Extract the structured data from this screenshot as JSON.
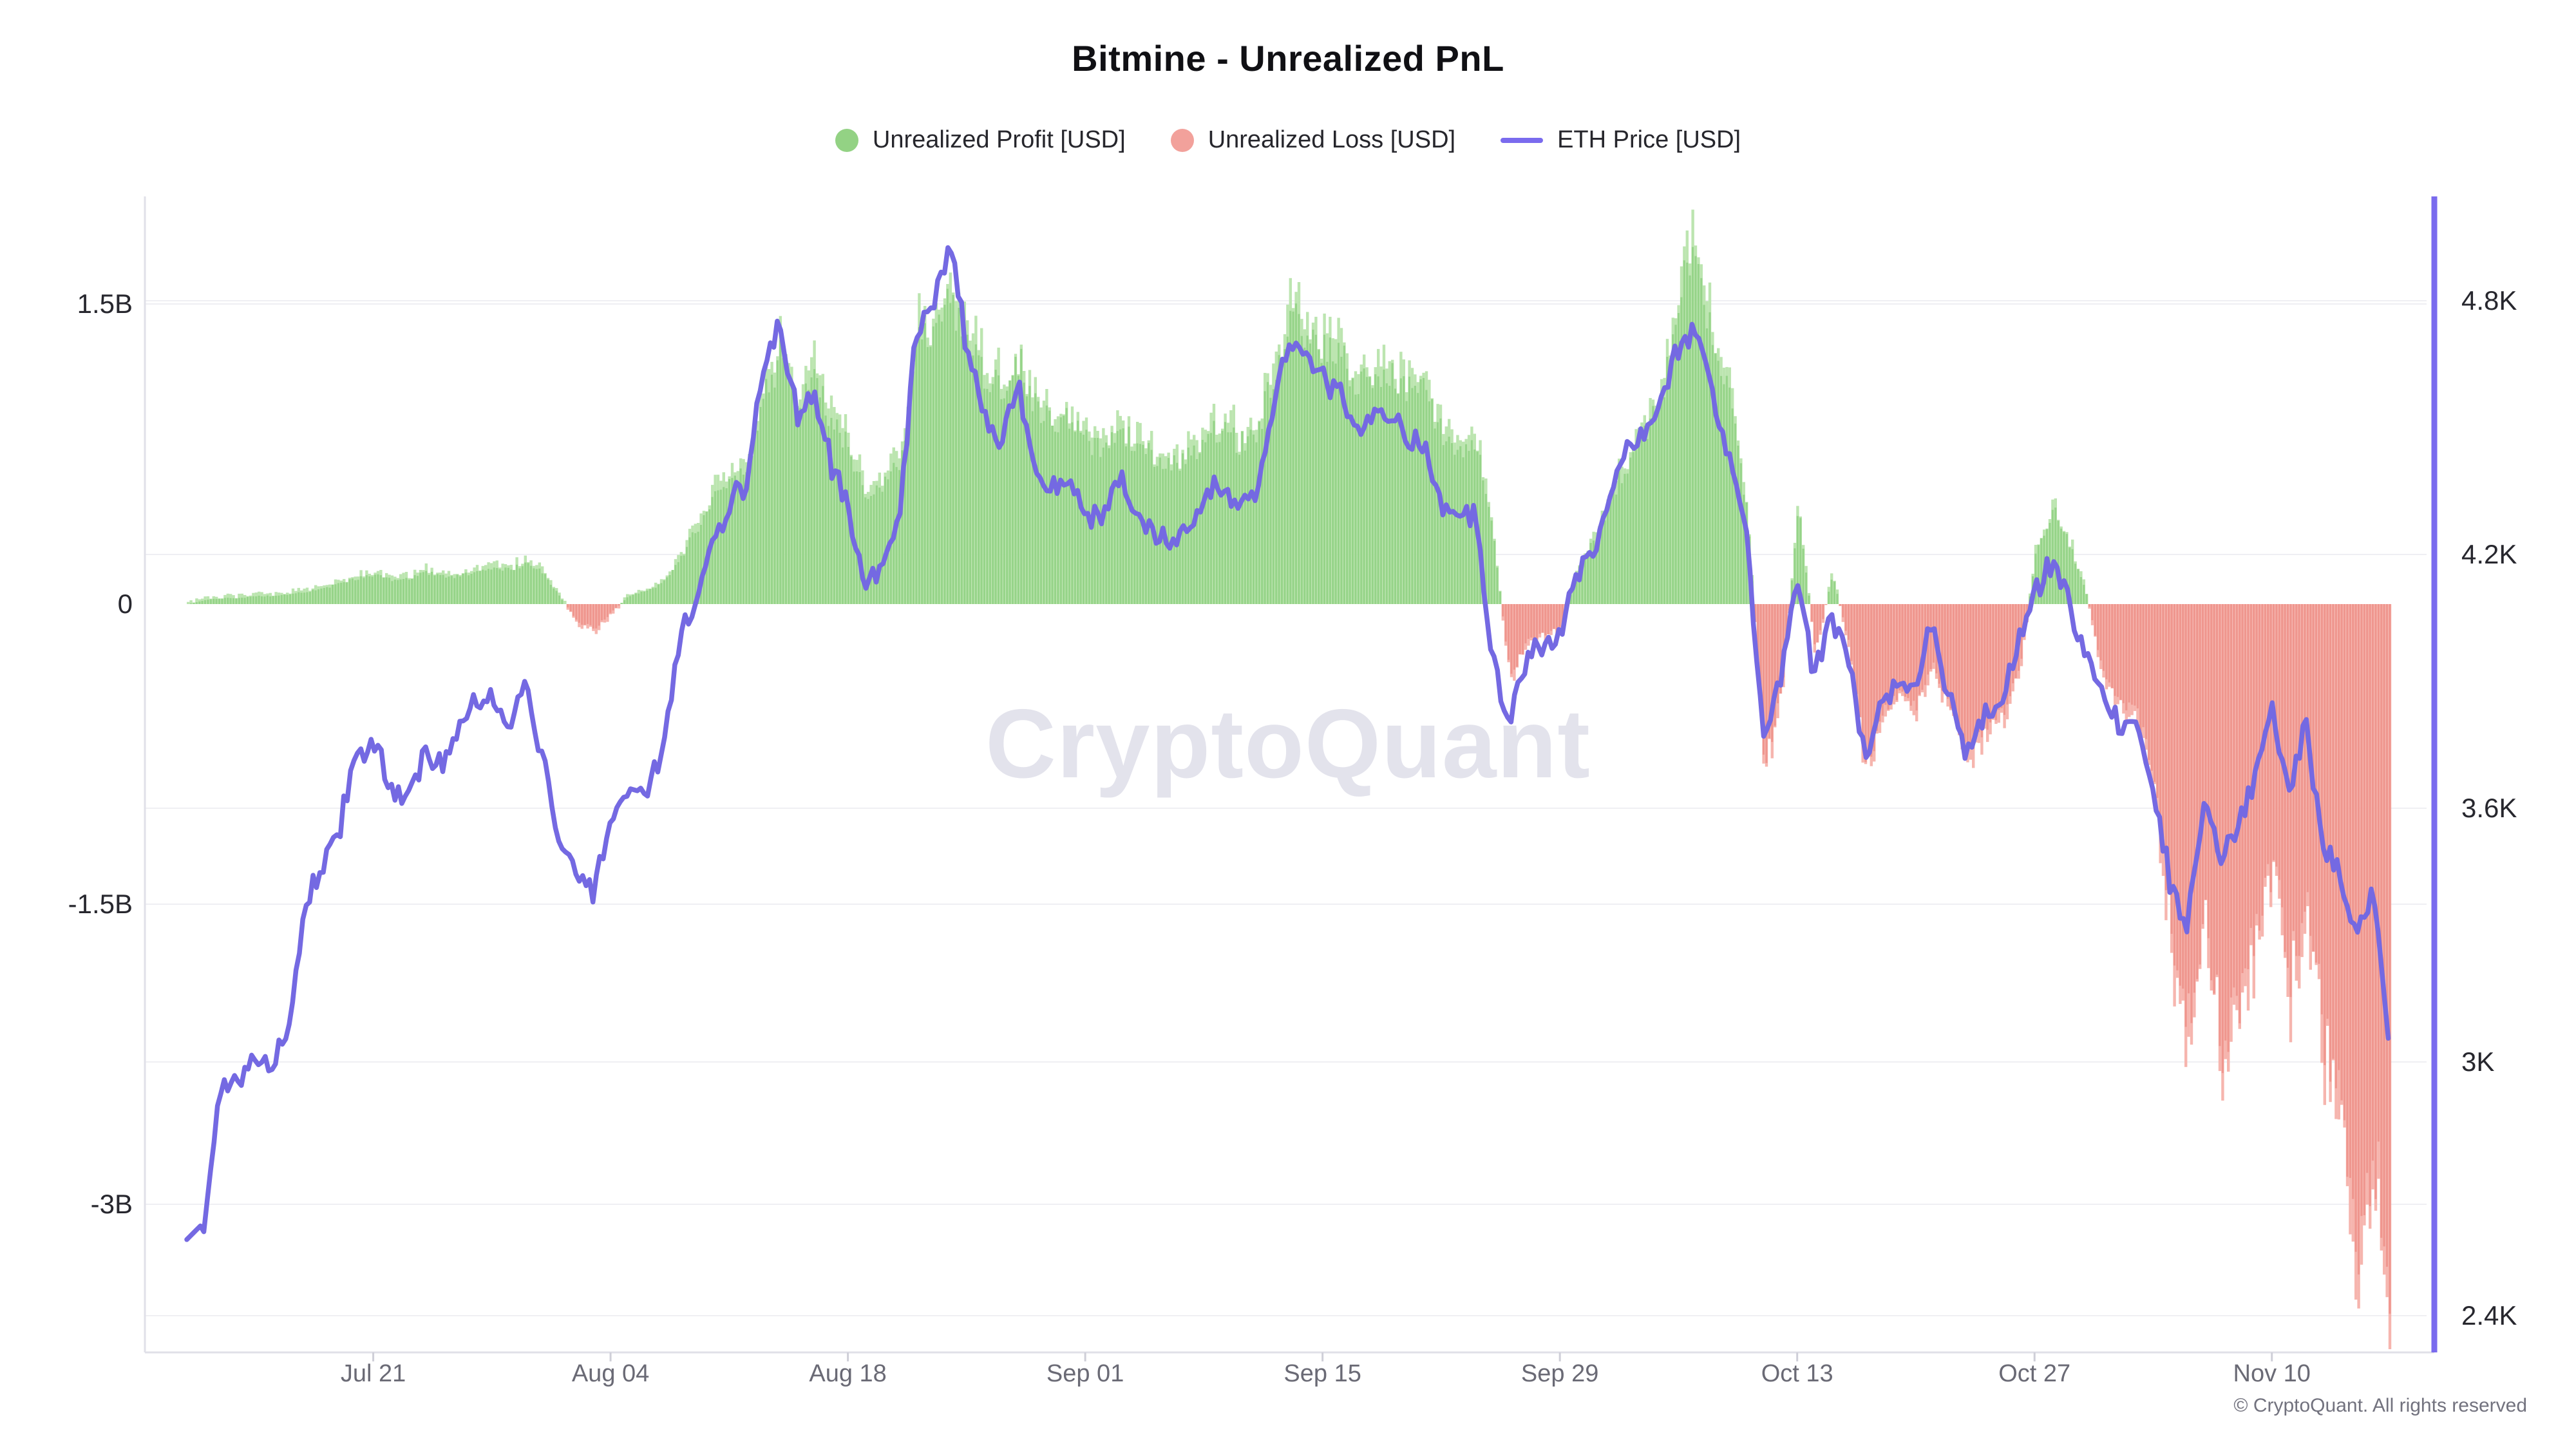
{
  "title": "Bitmine - Unrealized PnL",
  "watermark": "CryptoQuant",
  "copyright": "© CryptoQuant. All rights reserved",
  "legend": [
    {
      "label": "Unrealized Profit [USD]",
      "swatch": "circle",
      "color": "#93d284"
    },
    {
      "label": "Unrealized Loss [USD]",
      "swatch": "circle",
      "color": "#f2a19b"
    },
    {
      "label": "ETH Price [USD]",
      "swatch": "line",
      "color": "#7a6bee"
    }
  ],
  "colors": {
    "profit_bar": "#96d489",
    "profit_bar_light": "#bce5b0",
    "loss_bar": "#ef968e",
    "loss_bar_light": "#f6b5ae",
    "eth_line": "#7469e2",
    "right_axis_line": "#7a6bee",
    "gridline": "#efeff3",
    "axis_line": "#e0e0e8",
    "tick_mark": "#cfcfd8"
  },
  "chart_data": {
    "type": "combo",
    "title": "Bitmine - Unrealized PnL",
    "subtitle": "",
    "grid": "horizontal only",
    "legend_position": "top center",
    "series": [
      {
        "name": "Unrealized Profit [USD]",
        "type": "bar",
        "axis": "left",
        "color": "#96d489",
        "source": "positive part of unrealized_pnl_billion_usd"
      },
      {
        "name": "Unrealized Loss [USD]",
        "type": "bar",
        "axis": "left",
        "color": "#ef968e",
        "source": "negative part of unrealized_pnl_billion_usd"
      },
      {
        "name": "ETH Price [USD]",
        "type": "line",
        "axis": "right",
        "color": "#7469e2",
        "source": "eth_price_kusd"
      }
    ],
    "left_axis": {
      "unit": "USD (billions)",
      "ticks": [
        "1.5B",
        "0",
        "-1.5B",
        "-3B"
      ],
      "tick_values": [
        1.5,
        0,
        -1.5,
        -3
      ],
      "range": [
        -3.75,
        2.04
      ]
    },
    "right_axis": {
      "unit": "USD (thousands)",
      "ticks": [
        "4.8K",
        "4.2K",
        "3.6K",
        "3K",
        "2.4K"
      ],
      "tick_values": [
        4.8,
        4.2,
        3.6,
        3.0,
        2.4
      ],
      "range": [
        2.31,
        5.05
      ]
    },
    "x_label_ticks": [
      {
        "label": "Jul 21",
        "day_index": 11
      },
      {
        "label": "Aug 04",
        "day_index": 25
      },
      {
        "label": "Aug 18",
        "day_index": 39
      },
      {
        "label": "Sep 01",
        "day_index": 53
      },
      {
        "label": "Sep 15",
        "day_index": 67
      },
      {
        "label": "Sep 29",
        "day_index": 81
      },
      {
        "label": "Oct 13",
        "day_index": 95
      },
      {
        "label": "Oct 27",
        "day_index": 109
      },
      {
        "label": "Nov 10",
        "day_index": 123
      }
    ],
    "dates": [
      "Jul 10",
      "Jul 11",
      "Jul 12",
      "Jul 13",
      "Jul 14",
      "Jul 15",
      "Jul 16",
      "Jul 17",
      "Jul 18",
      "Jul 19",
      "Jul 20",
      "Jul 21",
      "Jul 22",
      "Jul 23",
      "Jul 24",
      "Jul 25",
      "Jul 26",
      "Jul 27",
      "Jul 28",
      "Jul 29",
      "Jul 30",
      "Jul 31",
      "Aug 01",
      "Aug 02",
      "Aug 03",
      "Aug 04",
      "Aug 05",
      "Aug 06",
      "Aug 07",
      "Aug 08",
      "Aug 09",
      "Aug 10",
      "Aug 11",
      "Aug 12",
      "Aug 13",
      "Aug 14",
      "Aug 15",
      "Aug 16",
      "Aug 17",
      "Aug 18",
      "Aug 19",
      "Aug 20",
      "Aug 21",
      "Aug 22",
      "Aug 23",
      "Aug 24",
      "Aug 25",
      "Aug 26",
      "Aug 27",
      "Aug 28",
      "Aug 29",
      "Aug 30",
      "Aug 31",
      "Sep 01",
      "Sep 02",
      "Sep 03",
      "Sep 04",
      "Sep 05",
      "Sep 06",
      "Sep 07",
      "Sep 08",
      "Sep 09",
      "Sep 10",
      "Sep 11",
      "Sep 12",
      "Sep 13",
      "Sep 14",
      "Sep 15",
      "Sep 16",
      "Sep 17",
      "Sep 18",
      "Sep 19",
      "Sep 20",
      "Sep 21",
      "Sep 22",
      "Sep 23",
      "Sep 24",
      "Sep 25",
      "Sep 26",
      "Sep 27",
      "Sep 28",
      "Sep 29",
      "Sep 30",
      "Oct 01",
      "Oct 02",
      "Oct 03",
      "Oct 04",
      "Oct 05",
      "Oct 06",
      "Oct 07",
      "Oct 08",
      "Oct 09",
      "Oct 10",
      "Oct 11",
      "Oct 12",
      "Oct 13",
      "Oct 14",
      "Oct 15",
      "Oct 16",
      "Oct 17",
      "Oct 18",
      "Oct 19",
      "Oct 20",
      "Oct 21",
      "Oct 22",
      "Oct 23",
      "Oct 24",
      "Oct 25",
      "Oct 26",
      "Oct 27",
      "Oct 28",
      "Oct 29",
      "Oct 30",
      "Oct 31",
      "Nov 01",
      "Nov 02",
      "Nov 03",
      "Nov 04",
      "Nov 05",
      "Nov 06",
      "Nov 07",
      "Nov 08",
      "Nov 09",
      "Nov 10",
      "Nov 11",
      "Nov 12",
      "Nov 13",
      "Nov 14",
      "Nov 15",
      "Nov 16",
      "Nov 17"
    ],
    "unrealized_pnl_billion_usd": [
      0.0,
      0.02,
      0.03,
      0.03,
      0.04,
      0.04,
      0.05,
      0.06,
      0.08,
      0.1,
      0.13,
      0.15,
      0.12,
      0.13,
      0.16,
      0.14,
      0.14,
      0.16,
      0.18,
      0.17,
      0.21,
      0.15,
      0.03,
      -0.09,
      -0.12,
      -0.04,
      0.04,
      0.07,
      0.1,
      0.22,
      0.38,
      0.52,
      0.62,
      0.66,
      1.05,
      1.25,
      1.02,
      1.1,
      0.92,
      0.78,
      0.52,
      0.58,
      0.7,
      1.28,
      1.42,
      1.5,
      1.35,
      1.12,
      1.08,
      1.22,
      1.0,
      0.88,
      0.92,
      0.82,
      0.75,
      0.88,
      0.8,
      0.72,
      0.68,
      0.75,
      0.82,
      0.88,
      0.8,
      0.85,
      1.12,
      1.42,
      1.38,
      1.28,
      1.22,
      1.1,
      1.18,
      1.15,
      1.08,
      1.05,
      0.85,
      0.78,
      0.82,
      0.35,
      -0.38,
      -0.18,
      -0.15,
      -0.12,
      0.18,
      0.32,
      0.55,
      0.72,
      0.85,
      1.05,
      1.55,
      1.72,
      1.25,
      1.0,
      0.45,
      -0.8,
      -0.45,
      0.5,
      -0.25,
      0.15,
      -0.2,
      -0.8,
      -0.55,
      -0.45,
      -0.5,
      -0.3,
      -0.55,
      -0.75,
      -0.6,
      -0.55,
      -0.35,
      0.25,
      0.48,
      0.3,
      0.05,
      -0.35,
      -0.5,
      -0.55,
      -0.9,
      -1.6,
      -2.1,
      -1.55,
      -2.2,
      -1.95,
      -1.65,
      -1.3,
      -1.85,
      -1.45,
      -2.15,
      -2.55,
      -3.25,
      -2.75,
      -3.45
    ],
    "eth_price_kusd": [
      2.58,
      2.62,
      2.94,
      2.95,
      3.01,
      2.98,
      3.09,
      3.36,
      3.47,
      3.55,
      3.72,
      3.76,
      3.65,
      3.6,
      3.74,
      3.7,
      3.78,
      3.85,
      3.86,
      3.8,
      3.89,
      3.72,
      3.52,
      3.43,
      3.41,
      3.55,
      3.62,
      3.64,
      3.73,
      3.98,
      4.09,
      4.22,
      4.31,
      4.38,
      4.62,
      4.75,
      4.52,
      4.58,
      4.42,
      4.32,
      4.12,
      4.18,
      4.28,
      4.72,
      4.78,
      4.93,
      4.7,
      4.52,
      4.48,
      4.6,
      4.42,
      4.35,
      4.38,
      4.3,
      4.28,
      4.38,
      4.3,
      4.25,
      4.22,
      4.28,
      4.33,
      4.37,
      4.3,
      4.34,
      4.52,
      4.72,
      4.68,
      4.62,
      4.58,
      4.5,
      4.55,
      4.52,
      4.48,
      4.46,
      4.32,
      4.28,
      4.3,
      3.95,
      3.8,
      3.95,
      3.98,
      4.0,
      4.15,
      4.22,
      4.35,
      4.45,
      4.5,
      4.56,
      4.7,
      4.73,
      4.58,
      4.42,
      4.25,
      3.77,
      3.9,
      4.14,
      3.92,
      4.05,
      3.95,
      3.72,
      3.85,
      3.9,
      3.87,
      4.05,
      3.85,
      3.72,
      3.82,
      3.85,
      3.98,
      4.1,
      4.18,
      4.08,
      3.98,
      3.88,
      3.8,
      3.78,
      3.65,
      3.42,
      3.32,
      3.62,
      3.47,
      3.55,
      3.68,
      3.85,
      3.63,
      3.8,
      3.52,
      3.45,
      3.28,
      3.42,
      3.0
    ]
  }
}
